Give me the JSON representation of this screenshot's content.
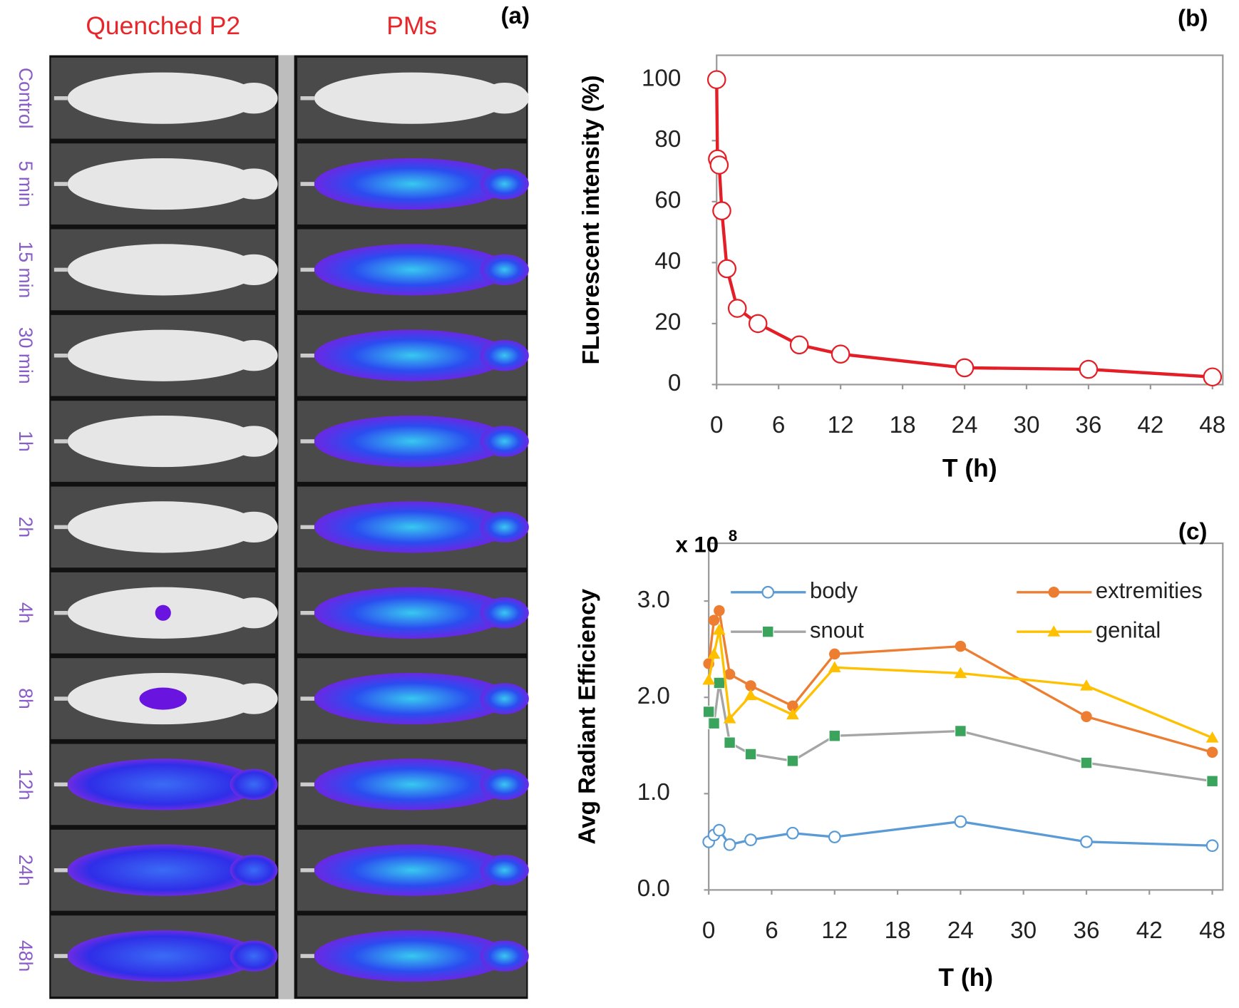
{
  "panel_a": {
    "label": "(a)",
    "columns": [
      "Quenched P2",
      "PMs"
    ],
    "rows": [
      "Control",
      "5 min",
      "15 min",
      "30 min",
      "1h",
      "2h",
      "4h",
      "8h",
      "12h",
      "24h",
      "48h"
    ]
  },
  "chart_data": [
    {
      "type": "line",
      "panel_label": "(b)",
      "xlabel": "T (h)",
      "ylabel": "FLuorescent intensity (%)",
      "x": [
        0,
        0.083,
        0.25,
        0.5,
        1,
        2,
        4,
        8,
        12,
        24,
        36,
        48
      ],
      "values": [
        100,
        74,
        72,
        57,
        38,
        25,
        20,
        13,
        10,
        5.5,
        5,
        2.5
      ],
      "color": "#e41e26",
      "marker": "circle-open",
      "xlim": [
        0,
        49
      ],
      "ylim": [
        0,
        108
      ],
      "xticks": [
        0,
        6,
        12,
        18,
        24,
        30,
        36,
        42,
        48
      ],
      "yticks": [
        0,
        20,
        40,
        60,
        80,
        100
      ]
    },
    {
      "type": "line",
      "panel_label": "(c)",
      "xlabel": "T (h)",
      "ylabel": "Avg Radiant Efficiency",
      "y_multiplier": "x 10",
      "y_multiplier_exp": "8",
      "x": [
        0,
        0.5,
        1,
        2,
        4,
        8,
        12,
        24,
        36,
        48
      ],
      "series": [
        {
          "name": "body",
          "color": "#5b9bd5",
          "marker_color": "#5b9bd5",
          "marker": "circle-open",
          "values": [
            0.5,
            0.57,
            0.62,
            0.47,
            0.52,
            0.59,
            0.55,
            0.71,
            0.5,
            0.46
          ]
        },
        {
          "name": "extremities",
          "color": "#ed7d31",
          "marker_color": "#ed7d31",
          "marker": "circle",
          "values": [
            2.35,
            2.8,
            2.9,
            2.24,
            2.12,
            1.91,
            2.45,
            2.53,
            1.8,
            1.43
          ]
        },
        {
          "name": "snout",
          "color": "#a5a5a5",
          "marker_color": "#3aa35c",
          "marker": "square",
          "values": [
            1.85,
            1.73,
            2.15,
            1.53,
            1.41,
            1.34,
            1.6,
            1.65,
            1.32,
            1.13
          ]
        },
        {
          "name": "genital",
          "color": "#ffc000",
          "marker_color": "#ffc000",
          "marker": "triangle",
          "values": [
            2.18,
            2.45,
            2.7,
            1.78,
            2.02,
            1.82,
            2.31,
            2.25,
            2.12,
            1.58
          ]
        }
      ],
      "xlim": [
        0,
        49
      ],
      "ylim": [
        0,
        3.6
      ],
      "xticks": [
        0,
        6,
        12,
        18,
        24,
        30,
        36,
        42,
        48
      ],
      "yticks": [
        {
          "value": 0,
          "label": "0.0"
        },
        {
          "value": 1,
          "label": "1.0"
        },
        {
          "value": 2,
          "label": "2.0"
        },
        {
          "value": 3,
          "label": "3.0"
        }
      ]
    }
  ]
}
